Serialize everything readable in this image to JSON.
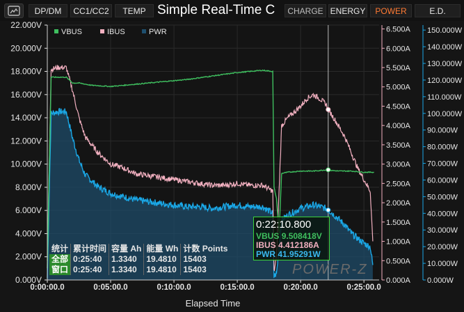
{
  "title": "Simple Real-Time C",
  "tabs": [
    {
      "label": "DP/DM",
      "active": false
    },
    {
      "label": "CC1/CC2",
      "active": false
    },
    {
      "label": "TEMP",
      "active": false
    },
    {
      "label": "CHARGE",
      "active": false
    },
    {
      "label": "ENERGY",
      "active": false
    },
    {
      "label": "POWER",
      "active": true
    },
    {
      "label": "E.D.",
      "active": false
    }
  ],
  "home_icon": "home-icon",
  "colors": {
    "vbus": "#3fbf5f",
    "ibus": "#f2b0c0",
    "pwr": "#1aa7e6",
    "active_tab": "#ff7a33"
  },
  "legend": [
    {
      "name": "VBUS",
      "color": "#3fbf5f"
    },
    {
      "name": "IBUS",
      "color": "#f2b0c0"
    },
    {
      "name": "PWR",
      "color": "#1e4f6e"
    }
  ],
  "xlabel": "Elapsed Time",
  "stats": {
    "headers": [
      "统计",
      "累计时间",
      "容量 Ah",
      "能量 Wh",
      "计数 Points"
    ],
    "rows": [
      {
        "label": "全部",
        "time": "0:25:40",
        "ah": "1.3340",
        "wh": "19.4810",
        "points": "15403"
      },
      {
        "label": "窗口",
        "time": "0:25:40",
        "ah": "1.3340",
        "wh": "19.4810",
        "points": "15403"
      }
    ]
  },
  "tooltip": {
    "time": "0:22:10.800",
    "vbus_label": "VBUS",
    "vbus": "9.508418V",
    "ibus_label": "IBUS",
    "ibus": "4.412186A",
    "pwr_label": "PWR",
    "pwr": "41.95291W"
  },
  "brand": "POWER-Z",
  "chart_data": {
    "type": "line",
    "xlabel": "Elapsed Time",
    "x_ticks": [
      "0:00:00.0",
      "0:05:00.0",
      "0:10:00.0",
      "0:15:00.0",
      "0:20:00.0",
      "0:25:00.0"
    ],
    "x_range_min": [
      0,
      26.2
    ],
    "y_left": {
      "unit": "V",
      "range": [
        0,
        22
      ],
      "ticks": [
        "0.000V",
        "2.000V",
        "4.000V",
        "6.000V",
        "8.000V",
        "10.000V",
        "12.000V",
        "14.000V",
        "16.000V",
        "18.000V",
        "20.000V",
        "22.000V"
      ]
    },
    "y_mid": {
      "unit": "A",
      "range": [
        0,
        6.6
      ],
      "ticks": [
        "0.000A",
        "0.500A",
        "1.000A",
        "1.500A",
        "2.000A",
        "2.500A",
        "3.000A",
        "3.500A",
        "4.000A",
        "4.500A",
        "5.000A",
        "5.500A",
        "6.000A",
        "6.500A"
      ]
    },
    "y_right": {
      "unit": "W",
      "range": [
        0,
        153
      ],
      "ticks": [
        "0.000W",
        "10.000W",
        "20.000W",
        "30.000W",
        "40.000W",
        "50.000W",
        "60.000W",
        "70.000W",
        "80.000W",
        "90.000W",
        "100.000W",
        "110.000W",
        "120.000W",
        "130.000W",
        "140.000W",
        "150.000W"
      ]
    },
    "cursor_min": 22.18,
    "series": [
      {
        "name": "VBUS",
        "axis": "V",
        "x": [
          0,
          0.3,
          0.6,
          1.5,
          2.0,
          2.5,
          3.0,
          3.5,
          5,
          7,
          9,
          11,
          13,
          15,
          17,
          17.8,
          17.9,
          18.1,
          18.3,
          18.5,
          19.0,
          20,
          21,
          22,
          23,
          24,
          25,
          25.6,
          25.8
        ],
        "y": [
          1,
          17.5,
          17.5,
          17.5,
          17.0,
          17.0,
          16.9,
          16.8,
          16.7,
          16.9,
          17.1,
          17.3,
          17.6,
          17.9,
          18.1,
          18.0,
          8,
          7,
          4,
          9.2,
          9.3,
          9.4,
          9.4,
          9.5,
          9.4,
          9.4,
          9.3,
          9.3,
          9.3
        ]
      },
      {
        "name": "IBUS",
        "axis": "A",
        "x": [
          0,
          0.3,
          0.8,
          1.5,
          2.0,
          2.5,
          3.0,
          4,
          5,
          6,
          7,
          8,
          9,
          10,
          11,
          12,
          13,
          14,
          15,
          16,
          17,
          17.8,
          17.9,
          18.1,
          18.5,
          19.0,
          19.5,
          20,
          20.5,
          21,
          21.5,
          22,
          22.2,
          22.8,
          23.5,
          24,
          24.5,
          25,
          25.5,
          25.7
        ],
        "y": [
          0.5,
          5.45,
          5.5,
          5.5,
          4.9,
          4.2,
          3.7,
          3.3,
          3.0,
          2.9,
          2.75,
          2.7,
          2.65,
          2.6,
          2.55,
          2.5,
          2.45,
          2.45,
          2.5,
          2.45,
          2.45,
          2.3,
          0.2,
          0.6,
          4.0,
          4.2,
          4.35,
          4.5,
          4.7,
          4.8,
          4.7,
          4.55,
          4.41,
          4.1,
          3.7,
          3.3,
          2.9,
          2.6,
          2.3,
          1.0
        ]
      },
      {
        "name": "PWR",
        "axis": "W",
        "x": [
          0,
          0.3,
          0.8,
          1.5,
          2.0,
          2.5,
          3.0,
          4,
          5,
          6,
          7,
          8,
          9,
          10,
          11,
          12,
          13,
          14,
          15,
          16,
          17,
          17.8,
          17.9,
          18.1,
          18.5,
          19.0,
          19.5,
          20,
          20.5,
          21,
          21.5,
          22,
          22.2,
          22.8,
          23.5,
          24,
          24.5,
          25,
          25.5,
          25.7
        ],
        "y": [
          1,
          100,
          101,
          101,
          85,
          72,
          63,
          56,
          52,
          50,
          48,
          47,
          46,
          45,
          44,
          44,
          43,
          44,
          45,
          44,
          44,
          40,
          2,
          4,
          36,
          39,
          41,
          43,
          44,
          45,
          44,
          43,
          42,
          38,
          33,
          28,
          25,
          22,
          20,
          9
        ]
      }
    ]
  }
}
